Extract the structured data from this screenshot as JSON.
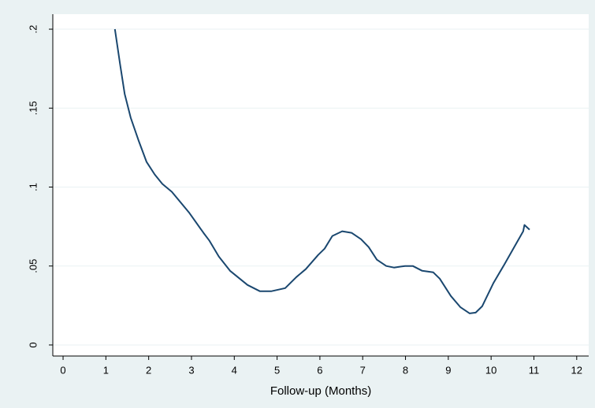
{
  "chart_data": {
    "type": "line",
    "x_label": "Follow-up (Months)",
    "x": [
      1.21,
      1.33,
      1.44,
      1.58,
      1.77,
      1.95,
      2.14,
      2.32,
      2.54,
      2.94,
      3.28,
      3.42,
      3.64,
      3.9,
      4.31,
      4.6,
      4.86,
      5.19,
      5.45,
      5.67,
      5.96,
      6.11,
      6.29,
      6.52,
      6.74,
      6.96,
      7.14,
      7.33,
      7.55,
      7.73,
      7.99,
      8.17,
      8.39,
      8.65,
      8.8,
      9.06,
      9.28,
      9.5,
      9.64,
      9.79,
      10.05,
      10.31,
      10.56,
      10.75,
      10.78,
      10.9
    ],
    "values": [
      0.2,
      0.178,
      0.159,
      0.144,
      0.129,
      0.116,
      0.108,
      0.102,
      0.097,
      0.084,
      0.071,
      0.066,
      0.056,
      0.047,
      0.038,
      0.034,
      0.034,
      0.036,
      0.043,
      0.048,
      0.057,
      0.061,
      0.069,
      0.072,
      0.071,
      0.067,
      0.062,
      0.054,
      0.05,
      0.049,
      0.05,
      0.05,
      0.047,
      0.046,
      0.042,
      0.031,
      0.024,
      0.02,
      0.0205,
      0.0245,
      0.039,
      0.051,
      0.063,
      0.072,
      0.076,
      0.073
    ],
    "color": "#1a476f",
    "xlim": [
      -0.24,
      12.28
    ],
    "xticks": [
      0,
      1,
      2,
      3,
      4,
      5,
      6,
      7,
      8,
      9,
      10,
      11,
      12
    ],
    "ylim": [
      -0.007,
      0.2095
    ],
    "yticks": [
      0,
      {
        "value": 0.05,
        "label": ".05"
      },
      {
        "value": 0.1,
        "label": ".1"
      },
      {
        "value": 0.15,
        "label": ".15"
      },
      {
        "value": 0.2,
        "label": ".2"
      }
    ],
    "grid": true
  }
}
